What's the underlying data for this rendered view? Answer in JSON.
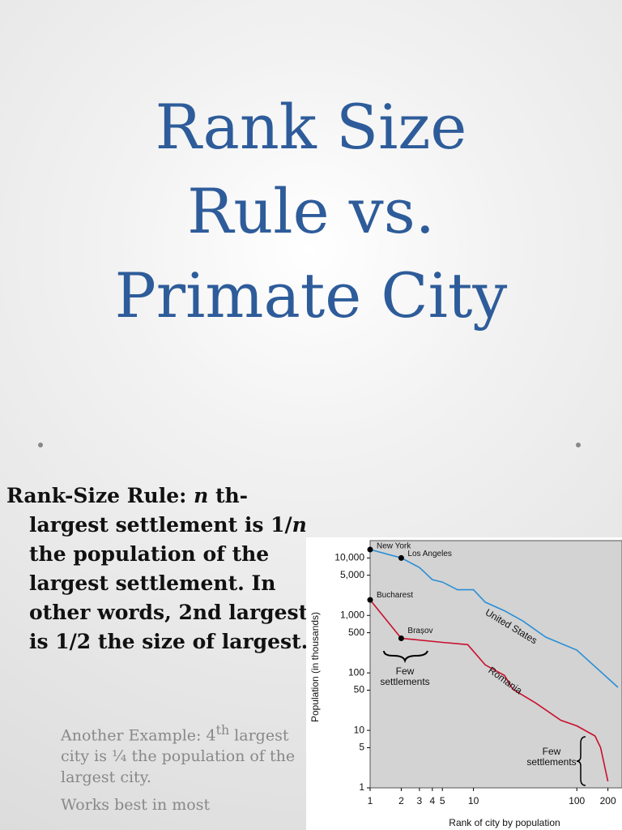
{
  "slide": {
    "title_lines": [
      "Rank Size",
      "Rule vs.",
      "Primate City"
    ],
    "bullet": [
      "Rank-Size Rule: ",
      "n",
      " th-largest settlement is 1/",
      "n",
      " the population of the largest settlement. In other words, 2nd largest is 1/2 the size of largest."
    ],
    "sub_bullets": [
      [
        "Another Example: 4",
        "th",
        " largest city is ¼ the population of the largest city."
      ],
      [
        "Works best in most"
      ]
    ]
  },
  "chart_data": {
    "type": "line",
    "x_label": "Rank of city by population",
    "y_label": "Population (in thousands)",
    "log_x": true,
    "log_y": true,
    "xlim": [
      1,
      250
    ],
    "ylim": [
      1,
      20000
    ],
    "xticks": [
      1,
      2,
      3,
      4,
      5,
      10,
      100,
      200
    ],
    "yticks": [
      {
        "value": 10000,
        "label": "10,000"
      },
      {
        "value": 5000,
        "label": "5,000"
      },
      {
        "value": 1000,
        "label": "1,000"
      },
      500,
      100,
      50,
      10,
      5,
      1
    ],
    "series": [
      {
        "name": "United States",
        "color": "#2a8fd6",
        "x": [
          1,
          2,
          3,
          4,
          5,
          7,
          10,
          13,
          20,
          30,
          50,
          100,
          250
        ],
        "values": [
          14000,
          10000,
          6800,
          4200,
          3800,
          2800,
          2800,
          1700,
          1200,
          800,
          420,
          250,
          56
        ]
      },
      {
        "name": "Romania",
        "color": "#c8102e",
        "x": [
          1,
          2,
          5,
          8.8,
          13,
          20,
          24,
          40,
          70,
          100,
          150,
          170,
          200
        ],
        "values": [
          1860,
          400,
          340,
          310,
          138,
          90,
          52,
          30,
          15,
          12,
          8,
          5,
          1.3
        ]
      }
    ],
    "annotations": [
      {
        "text": "New York",
        "series": 0,
        "index": 0
      },
      {
        "text": "Los Angeles",
        "series": 0,
        "index": 1
      },
      {
        "text": "Bucharest",
        "series": 1,
        "index": 0
      },
      {
        "text": "Brașov",
        "series": 1,
        "index": 1
      }
    ],
    "notes": [
      [
        "Few",
        "settlements"
      ],
      [
        "Few",
        "settlements"
      ]
    ]
  }
}
